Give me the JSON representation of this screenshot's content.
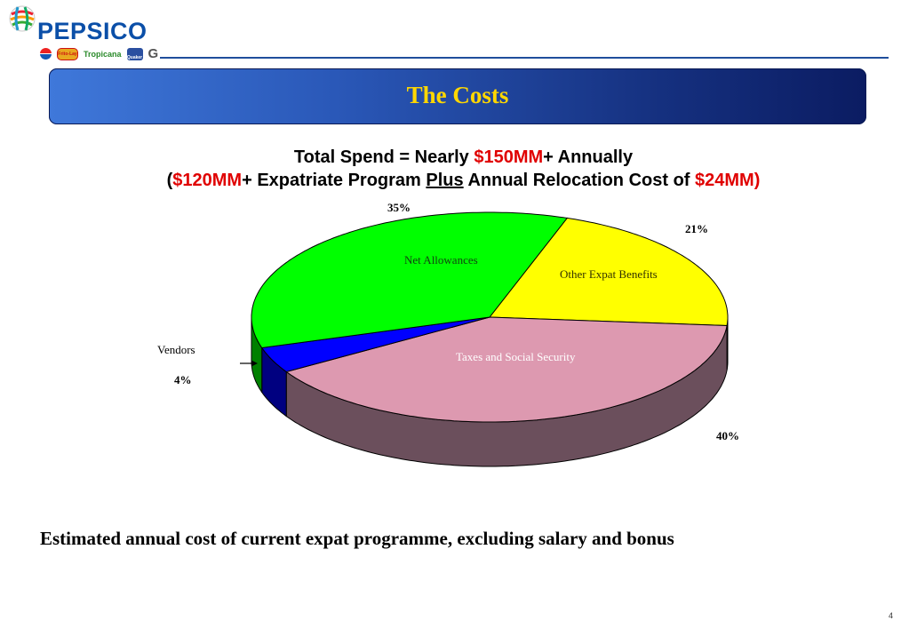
{
  "brand": {
    "logo_text": "PEPSICO",
    "sub_brands": [
      "Pepsi",
      "Frito-Lay",
      "Tropicana",
      "Quaker",
      "Gatorade"
    ],
    "color": "#0b4fa8"
  },
  "title": "The Costs",
  "headline": {
    "line1_prefix": "Total Spend = Nearly ",
    "line1_highlight": "$150MM",
    "line1_suffix": "+ Annually",
    "line2_open": "(",
    "line2_highlight1": "$120MM",
    "line2_mid": "+ Expatriate Program ",
    "line2_underlined": "Plus",
    "line2_rest": " Annual Relocation Cost of ",
    "line2_highlight2": "$24MM",
    "line2_close": ")"
  },
  "chart_data": {
    "type": "pie",
    "style": "3d",
    "slices": [
      {
        "label": "Other Expat Benefits",
        "value": 21,
        "pct_label": "21%",
        "color": "#ffff00",
        "side_color": "#8c8c00"
      },
      {
        "label": "Taxes and Social Security",
        "value": 40,
        "pct_label": "40%",
        "color": "#dd99b0",
        "side_color": "#6b4f5c"
      },
      {
        "label": "Vendors",
        "value": 4,
        "pct_label": "4%",
        "color": "#0000ff",
        "side_color": "#000080"
      },
      {
        "label": "Net Allowances",
        "value": 35,
        "pct_label": "35%",
        "color": "#00ff00",
        "side_color": "#008000"
      }
    ]
  },
  "footnote": "Estimated annual cost of current expat programme, excluding salary and bonus",
  "page_number": "4"
}
